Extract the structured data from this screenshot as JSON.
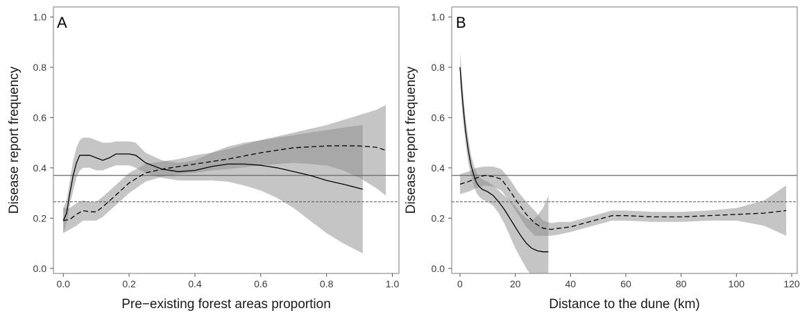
{
  "chart_data": [
    {
      "type": "line",
      "panel_label": "A",
      "xlabel": "Pre−existing forest areas proportion",
      "ylabel": "Disease report frequency",
      "xlim": [
        -0.03,
        1.02
      ],
      "ylim": [
        -0.02,
        1.04
      ],
      "xticks": [
        0.0,
        0.2,
        0.4,
        0.6,
        0.8,
        1.0
      ],
      "xtick_labels": [
        "0.0",
        "0.2",
        "0.4",
        "0.6",
        "0.8",
        "1.0"
      ],
      "yticks": [
        0.0,
        0.2,
        0.4,
        0.6,
        0.8,
        1.0
      ],
      "ytick_labels": [
        "0.0",
        "0.2",
        "0.4",
        "0.6",
        "0.8",
        "1.0"
      ],
      "grid": false,
      "legend": "none",
      "hlines": [
        {
          "y": 0.37,
          "style": "solid"
        },
        {
          "y": 0.265,
          "style": "dashed"
        }
      ],
      "series": [
        {
          "style": "solid",
          "color": "#000000",
          "x": [
            0.0,
            0.01,
            0.02,
            0.03,
            0.04,
            0.05,
            0.06,
            0.08,
            0.1,
            0.12,
            0.14,
            0.16,
            0.18,
            0.2,
            0.22,
            0.25,
            0.3,
            0.35,
            0.4,
            0.45,
            0.5,
            0.55,
            0.6,
            0.65,
            0.7,
            0.75,
            0.8,
            0.85,
            0.91
          ],
          "y": [
            0.19,
            0.22,
            0.3,
            0.37,
            0.42,
            0.45,
            0.45,
            0.45,
            0.44,
            0.43,
            0.44,
            0.455,
            0.455,
            0.455,
            0.45,
            0.42,
            0.395,
            0.385,
            0.39,
            0.405,
            0.415,
            0.415,
            0.41,
            0.4,
            0.385,
            0.37,
            0.35,
            0.335,
            0.315
          ],
          "ci_lower": [
            0.14,
            0.18,
            0.25,
            0.31,
            0.36,
            0.39,
            0.4,
            0.4,
            0.39,
            0.39,
            0.4,
            0.41,
            0.41,
            0.41,
            0.4,
            0.38,
            0.36,
            0.35,
            0.35,
            0.35,
            0.345,
            0.33,
            0.31,
            0.28,
            0.24,
            0.19,
            0.14,
            0.1,
            0.06
          ],
          "ci_upper": [
            0.24,
            0.27,
            0.35,
            0.43,
            0.48,
            0.51,
            0.52,
            0.52,
            0.51,
            0.5,
            0.5,
            0.505,
            0.505,
            0.505,
            0.5,
            0.46,
            0.43,
            0.42,
            0.43,
            0.46,
            0.485,
            0.5,
            0.51,
            0.52,
            0.53,
            0.54,
            0.55,
            0.56,
            0.57
          ]
        },
        {
          "style": "dashed",
          "color": "#000000",
          "x": [
            0.0,
            0.02,
            0.04,
            0.06,
            0.08,
            0.1,
            0.12,
            0.15,
            0.2,
            0.25,
            0.3,
            0.35,
            0.4,
            0.45,
            0.5,
            0.6,
            0.7,
            0.8,
            0.85,
            0.9,
            0.95,
            0.98
          ],
          "y": [
            0.19,
            0.195,
            0.215,
            0.23,
            0.225,
            0.225,
            0.245,
            0.28,
            0.34,
            0.38,
            0.395,
            0.405,
            0.415,
            0.425,
            0.435,
            0.46,
            0.48,
            0.487,
            0.488,
            0.487,
            0.482,
            0.47
          ],
          "ci_lower": [
            0.14,
            0.155,
            0.17,
            0.19,
            0.19,
            0.19,
            0.205,
            0.24,
            0.3,
            0.345,
            0.365,
            0.375,
            0.38,
            0.39,
            0.395,
            0.41,
            0.42,
            0.41,
            0.39,
            0.36,
            0.32,
            0.29
          ],
          "ci_upper": [
            0.24,
            0.24,
            0.26,
            0.27,
            0.265,
            0.265,
            0.285,
            0.32,
            0.38,
            0.415,
            0.425,
            0.435,
            0.45,
            0.46,
            0.475,
            0.51,
            0.54,
            0.57,
            0.59,
            0.61,
            0.63,
            0.65
          ]
        }
      ]
    },
    {
      "type": "line",
      "panel_label": "B",
      "xlabel": "Distance to the dune (km)",
      "ylabel": "Disease report frequency",
      "xlim": [
        -3,
        122
      ],
      "ylim": [
        -0.02,
        1.04
      ],
      "xticks": [
        0,
        20,
        40,
        60,
        80,
        100,
        120
      ],
      "xtick_labels": [
        "0",
        "20",
        "40",
        "60",
        "80",
        "100",
        "120"
      ],
      "yticks": [
        0.0,
        0.2,
        0.4,
        0.6,
        0.8,
        1.0
      ],
      "ytick_labels": [
        "0.0",
        "0.2",
        "0.4",
        "0.6",
        "0.8",
        "1.0"
      ],
      "grid": false,
      "legend": "none",
      "hlines": [
        {
          "y": 0.37,
          "style": "solid"
        },
        {
          "y": 0.265,
          "style": "dashed"
        }
      ],
      "series": [
        {
          "style": "solid",
          "color": "#000000",
          "x": [
            0,
            1,
            2,
            3,
            4,
            5,
            6,
            7,
            8,
            10,
            12,
            14,
            16,
            18,
            20,
            22,
            24,
            26,
            28,
            30,
            32
          ],
          "y": [
            0.8,
            0.66,
            0.55,
            0.47,
            0.41,
            0.37,
            0.34,
            0.325,
            0.315,
            0.305,
            0.29,
            0.265,
            0.235,
            0.2,
            0.165,
            0.13,
            0.1,
            0.08,
            0.07,
            0.066,
            0.066
          ],
          "ci_lower": [
            0.74,
            0.6,
            0.5,
            0.42,
            0.37,
            0.33,
            0.3,
            0.285,
            0.275,
            0.265,
            0.25,
            0.22,
            0.18,
            0.13,
            0.08,
            0.04,
            0.0,
            -0.03,
            -0.04,
            -0.04,
            -0.04
          ],
          "ci_upper": [
            0.86,
            0.72,
            0.6,
            0.52,
            0.45,
            0.41,
            0.38,
            0.365,
            0.355,
            0.345,
            0.33,
            0.31,
            0.29,
            0.27,
            0.25,
            0.22,
            0.2,
            0.19,
            0.21,
            0.24,
            0.29
          ]
        },
        {
          "style": "dashed",
          "color": "#000000",
          "x": [
            0,
            3,
            6,
            9,
            12,
            15,
            18,
            21,
            24,
            27,
            30,
            33,
            36,
            40,
            45,
            50,
            55,
            60,
            70,
            80,
            90,
            100,
            110,
            118
          ],
          "y": [
            0.335,
            0.345,
            0.36,
            0.37,
            0.365,
            0.355,
            0.31,
            0.26,
            0.215,
            0.18,
            0.16,
            0.155,
            0.16,
            0.165,
            0.18,
            0.195,
            0.21,
            0.21,
            0.205,
            0.205,
            0.21,
            0.215,
            0.22,
            0.23
          ],
          "ci_lower": [
            0.295,
            0.305,
            0.32,
            0.33,
            0.325,
            0.31,
            0.265,
            0.215,
            0.165,
            0.13,
            0.13,
            0.13,
            0.135,
            0.145,
            0.16,
            0.175,
            0.19,
            0.19,
            0.185,
            0.185,
            0.19,
            0.19,
            0.17,
            0.13
          ],
          "ci_upper": [
            0.375,
            0.385,
            0.4,
            0.405,
            0.405,
            0.395,
            0.355,
            0.305,
            0.265,
            0.23,
            0.19,
            0.18,
            0.185,
            0.185,
            0.2,
            0.215,
            0.23,
            0.23,
            0.225,
            0.225,
            0.23,
            0.24,
            0.27,
            0.33
          ]
        }
      ]
    }
  ]
}
